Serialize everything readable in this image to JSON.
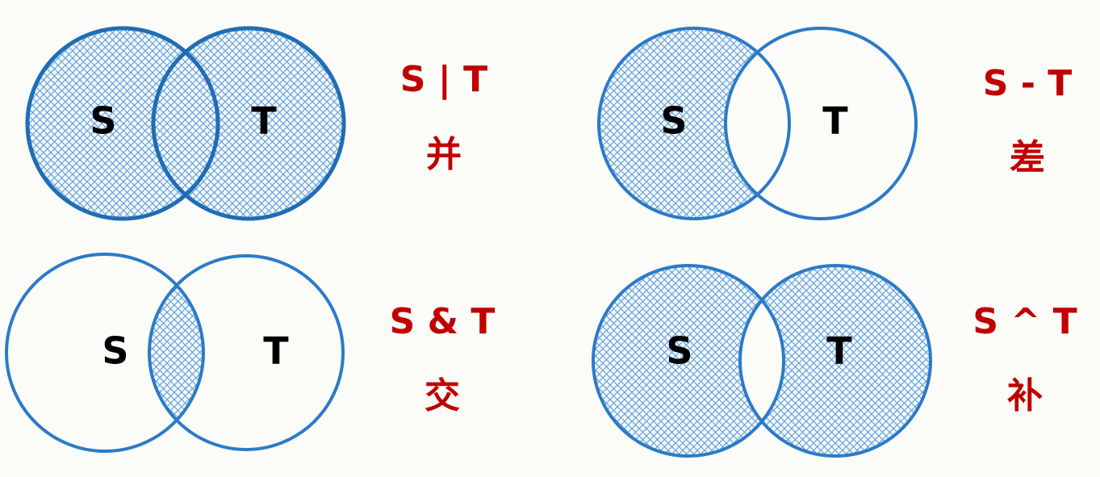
{
  "panels": [
    {
      "left": "S",
      "right": "T",
      "operation": "S | T",
      "name": "并"
    },
    {
      "left": "S",
      "right": "T",
      "operation": "S - T",
      "name": "差"
    },
    {
      "left": "S",
      "right": "T",
      "operation": "S & T",
      "name": "交"
    },
    {
      "left": "S",
      "right": "T",
      "operation": "S ^ T",
      "name": "补"
    }
  ]
}
